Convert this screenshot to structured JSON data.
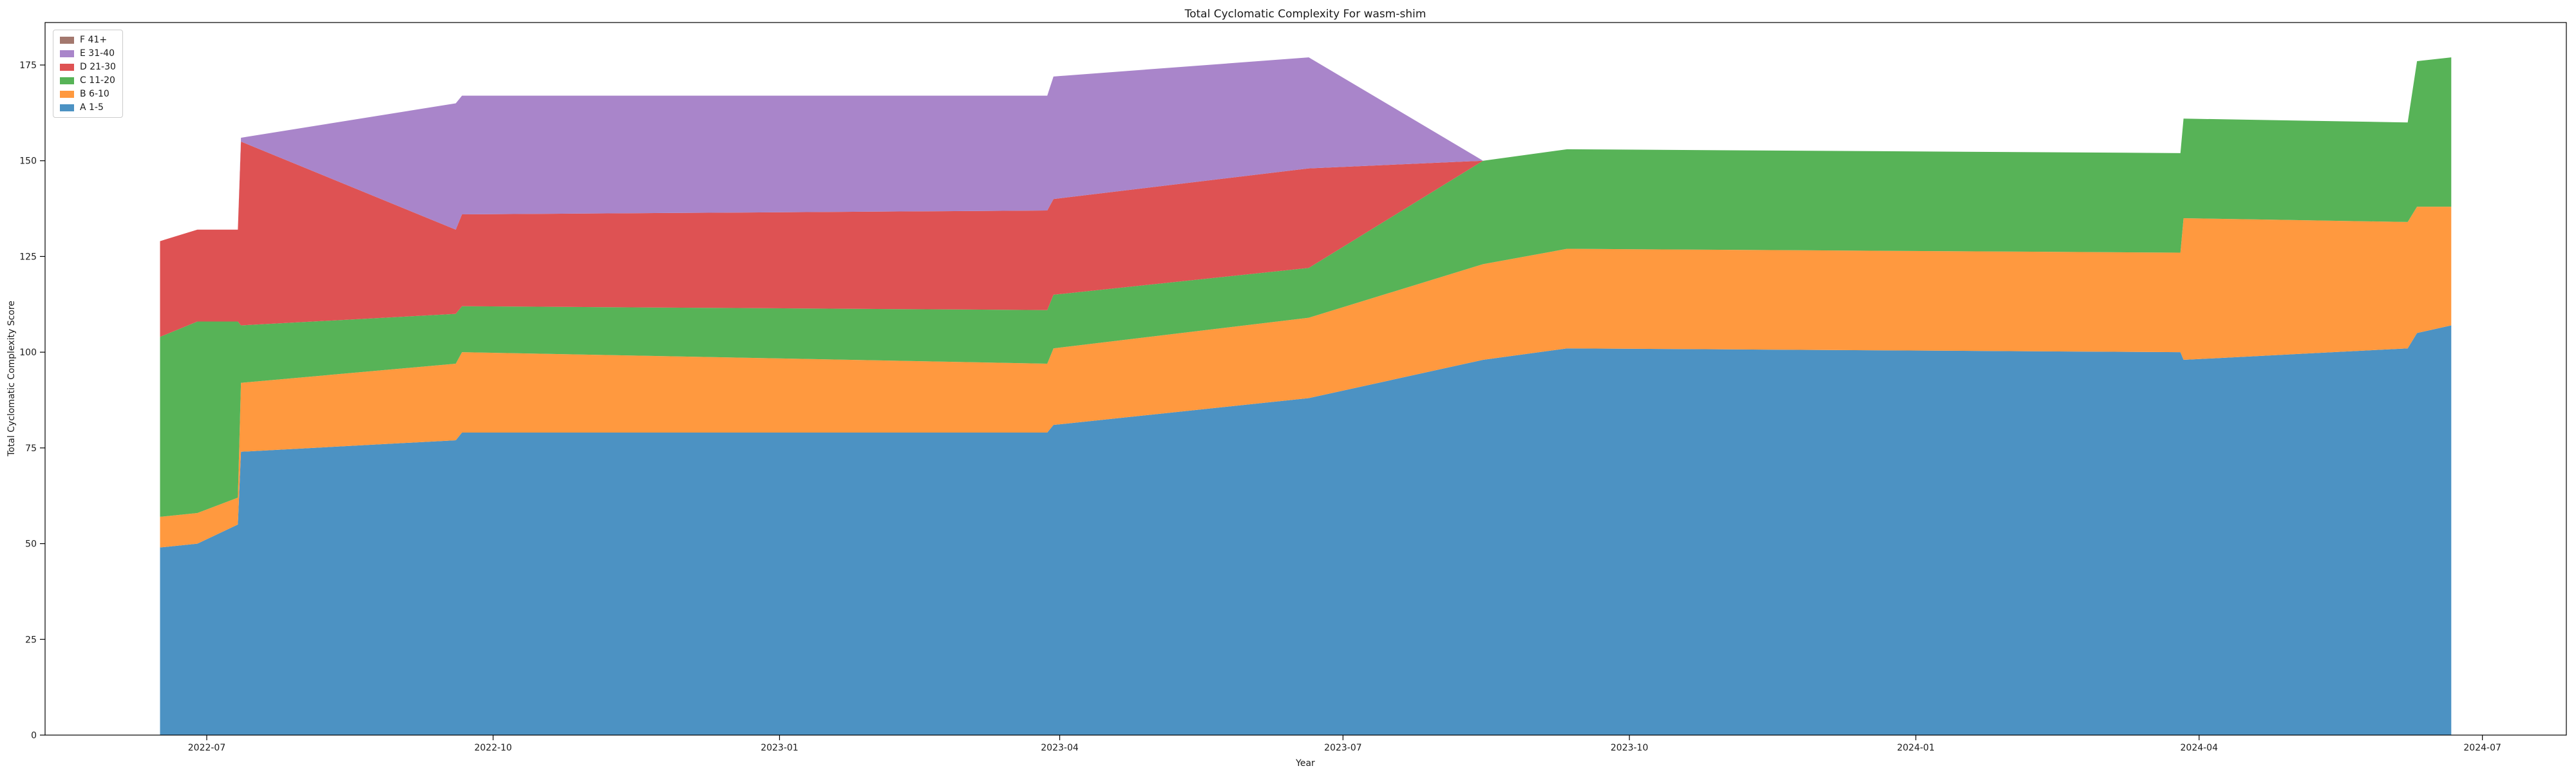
{
  "title": "Total Cyclomatic Complexity For wasm-shim",
  "axes": {
    "x_label": "Year",
    "y_label": "Total Cyclomatic Complexity Score",
    "x_ticks": [
      "2022-07",
      "2022-10",
      "2023-01",
      "2023-04",
      "2023-07",
      "2023-10",
      "2024-01",
      "2024-04",
      "2024-07"
    ],
    "y_ticks": [
      0,
      25,
      50,
      75,
      100,
      125,
      150,
      175
    ]
  },
  "legend": {
    "entries": [
      {
        "label": "F 41+",
        "color": "#A3786E"
      },
      {
        "label": "E 31-40",
        "color": "#A985CA"
      },
      {
        "label": "D 21-30",
        "color": "#DE5253"
      },
      {
        "label": "C 11-20",
        "color": "#57B357"
      },
      {
        "label": "B 6-10",
        "color": "#FF993F"
      },
      {
        "label": "A 1-5",
        "color": "#4C92C3"
      }
    ]
  },
  "chart_data": {
    "type": "area",
    "stacked": true,
    "title": "Total Cyclomatic Complexity For wasm-shim",
    "xlabel": "Year",
    "ylabel": "Total Cyclomatic Complexity Score",
    "ylim": [
      0,
      186
    ],
    "grid": false,
    "legend_position": "upper left",
    "x_dates": [
      "2022-06-16",
      "2022-06-28",
      "2022-07-11",
      "2022-07-12",
      "2022-09-19",
      "2022-09-21",
      "2023-03-28",
      "2023-03-30",
      "2023-06-20",
      "2023-08-15",
      "2023-09-11",
      "2024-03-26",
      "2024-03-27",
      "2024-06-07",
      "2024-06-10",
      "2024-06-21"
    ],
    "series": [
      {
        "name": "A 1-5",
        "color": "#4C92C3",
        "values": [
          49,
          50,
          55,
          74,
          77,
          79,
          79,
          81,
          88,
          98,
          101,
          100,
          98,
          101,
          105,
          107
        ]
      },
      {
        "name": "B 6-10",
        "color": "#FF993F",
        "values": [
          8,
          8,
          7,
          18,
          20,
          21,
          18,
          20,
          21,
          25,
          26,
          26,
          37,
          33,
          33,
          31
        ]
      },
      {
        "name": "C 11-20",
        "color": "#57B357",
        "values": [
          47,
          50,
          46,
          15,
          13,
          12,
          14,
          14,
          13,
          27,
          26,
          26,
          26,
          26,
          38,
          39
        ]
      },
      {
        "name": "D 21-30",
        "color": "#DE5253",
        "values": [
          25,
          24,
          24,
          48,
          22,
          24,
          26,
          25,
          26,
          0,
          0,
          0,
          0,
          0,
          0,
          0
        ]
      },
      {
        "name": "E 31-40",
        "color": "#A985CA",
        "values": [
          0,
          0,
          0,
          1,
          33,
          31,
          30,
          32,
          29,
          0,
          0,
          0,
          0,
          0,
          0,
          0
        ]
      },
      {
        "name": "F 41+",
        "color": "#A3786E",
        "values": [
          0,
          0,
          0,
          0,
          0,
          0,
          0,
          0,
          0,
          0,
          0,
          0,
          0,
          0,
          0,
          0
        ]
      }
    ]
  }
}
